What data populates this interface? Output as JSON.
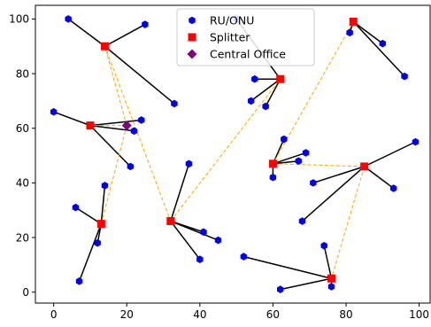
{
  "chart_data": {
    "type": "scatter",
    "title": "",
    "xlabel": "",
    "ylabel": "",
    "xlim": [
      -5,
      103
    ],
    "ylim": [
      -4,
      105
    ],
    "x_ticks": [
      0,
      20,
      40,
      60,
      80,
      100
    ],
    "y_ticks": [
      0,
      20,
      40,
      60,
      80,
      100
    ],
    "x_tick_labels": [
      "0",
      "20",
      "40",
      "60",
      "80",
      "100"
    ],
    "y_tick_labels": [
      "0",
      "20",
      "40",
      "60",
      "80",
      "100"
    ],
    "grid": false,
    "legend_placement": "top-center",
    "colors": {
      "onu": "#0000ee",
      "splitter": "#ff0000",
      "central_office": "#800080",
      "drop_line": "#000000",
      "feeder_line": "#ffa500"
    },
    "legend": [
      {
        "key": "onu",
        "label": "RU/ONU",
        "marker": "hexagon"
      },
      {
        "key": "splitter",
        "label": "Splitter",
        "marker": "square"
      },
      {
        "key": "central_office",
        "label": "Central Office",
        "marker": "diamond"
      }
    ],
    "central_office": {
      "x": 20,
      "y": 61
    },
    "splitters": [
      {
        "x": 14,
        "y": 90
      },
      {
        "x": 10,
        "y": 61
      },
      {
        "x": 13,
        "y": 25
      },
      {
        "x": 32,
        "y": 26
      },
      {
        "x": 62,
        "y": 78
      },
      {
        "x": 60,
        "y": 47
      },
      {
        "x": 82,
        "y": 99
      },
      {
        "x": 85,
        "y": 46
      },
      {
        "x": 76,
        "y": 5
      }
    ],
    "onus": [
      {
        "x": 4,
        "y": 100,
        "splitter": 0
      },
      {
        "x": 25,
        "y": 98,
        "splitter": 0
      },
      {
        "x": 33,
        "y": 69,
        "splitter": 0
      },
      {
        "x": 0,
        "y": 66,
        "splitter": 1
      },
      {
        "x": 24,
        "y": 63,
        "splitter": 1
      },
      {
        "x": 22,
        "y": 59,
        "splitter": 1
      },
      {
        "x": 21,
        "y": 46,
        "splitter": 1
      },
      {
        "x": 14,
        "y": 39,
        "splitter": 2
      },
      {
        "x": 6,
        "y": 31,
        "splitter": 2
      },
      {
        "x": 12,
        "y": 18,
        "splitter": 2
      },
      {
        "x": 7,
        "y": 4,
        "splitter": 2
      },
      {
        "x": 37,
        "y": 47,
        "splitter": 3
      },
      {
        "x": 41,
        "y": 22,
        "splitter": 3
      },
      {
        "x": 45,
        "y": 19,
        "splitter": 3
      },
      {
        "x": 40,
        "y": 12,
        "splitter": 3
      },
      {
        "x": 50,
        "y": 100,
        "splitter": 4
      },
      {
        "x": 55,
        "y": 78,
        "splitter": 4
      },
      {
        "x": 54,
        "y": 70,
        "splitter": 4
      },
      {
        "x": 58,
        "y": 68,
        "splitter": 4
      },
      {
        "x": 63,
        "y": 56,
        "splitter": 5
      },
      {
        "x": 69,
        "y": 51,
        "splitter": 5
      },
      {
        "x": 67,
        "y": 48,
        "splitter": 5
      },
      {
        "x": 60,
        "y": 42,
        "splitter": 5
      },
      {
        "x": 81,
        "y": 95,
        "splitter": 6
      },
      {
        "x": 90,
        "y": 91,
        "splitter": 6
      },
      {
        "x": 96,
        "y": 79,
        "splitter": 6
      },
      {
        "x": 99,
        "y": 55,
        "splitter": 7
      },
      {
        "x": 71,
        "y": 40,
        "splitter": 7
      },
      {
        "x": 93,
        "y": 38,
        "splitter": 7
      },
      {
        "x": 68,
        "y": 26,
        "splitter": 7
      },
      {
        "x": 74,
        "y": 17,
        "splitter": 8
      },
      {
        "x": 52,
        "y": 13,
        "splitter": 8
      },
      {
        "x": 62,
        "y": 1,
        "splitter": 8
      },
      {
        "x": 76,
        "y": 2,
        "splitter": 8
      }
    ],
    "feeder_links": [
      {
        "from": "central_office",
        "to_splitter": 0
      },
      {
        "from": "central_office",
        "to_splitter": 1
      },
      {
        "from": "central_office",
        "to_splitter": 2
      },
      {
        "from": "splitter",
        "from_index": 0,
        "to_splitter": 3
      },
      {
        "from": "splitter",
        "from_index": 3,
        "to_splitter": 4
      },
      {
        "from": "splitter",
        "from_index": 6,
        "to_splitter": 5
      },
      {
        "from": "splitter",
        "from_index": 5,
        "to_splitter": 7
      },
      {
        "from": "splitter",
        "from_index": 7,
        "to_splitter": 8
      }
    ],
    "series_labels": {
      "onu": "RU/ONU",
      "splitter": "Splitter",
      "central_office": "Central Office"
    }
  }
}
